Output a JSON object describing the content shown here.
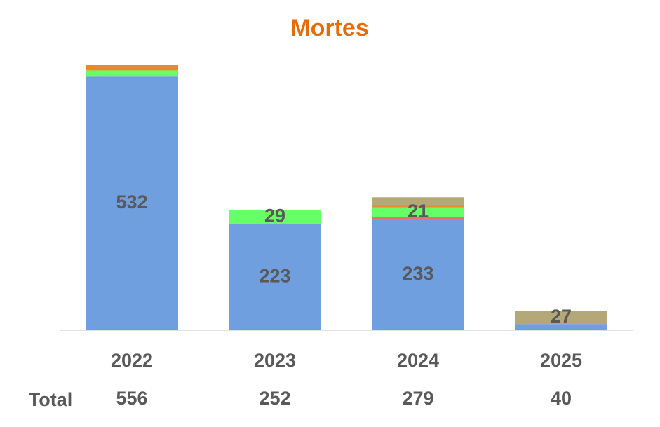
{
  "chart_data": {
    "type": "stacked_bar",
    "title": "Mortes",
    "categories": [
      "2022",
      "2023",
      "2024",
      "2025"
    ],
    "series": [
      {
        "color": "#6f9fde",
        "values": [
          532,
          223,
          233,
          13
        ],
        "show_labels": [
          true,
          true,
          true,
          false
        ]
      },
      {
        "color": "#e87070",
        "values": [
          null,
          null,
          4,
          null
        ],
        "show_labels": [
          false,
          false,
          false,
          false
        ]
      },
      {
        "color": "#66ff66",
        "values": [
          13,
          29,
          21,
          null
        ],
        "show_labels": [
          false,
          true,
          true,
          false
        ]
      },
      {
        "color": "#e8892c",
        "values": [
          11,
          null,
          3,
          null
        ],
        "show_labels": [
          false,
          false,
          false,
          false
        ]
      },
      {
        "color": "#b5a878",
        "values": [
          null,
          null,
          18,
          27
        ],
        "show_labels": [
          false,
          false,
          false,
          true
        ]
      }
    ],
    "ylim": [
      0,
      600
    ],
    "totals": {
      "label": "Total",
      "values": [
        556,
        252,
        279,
        40
      ]
    }
  }
}
